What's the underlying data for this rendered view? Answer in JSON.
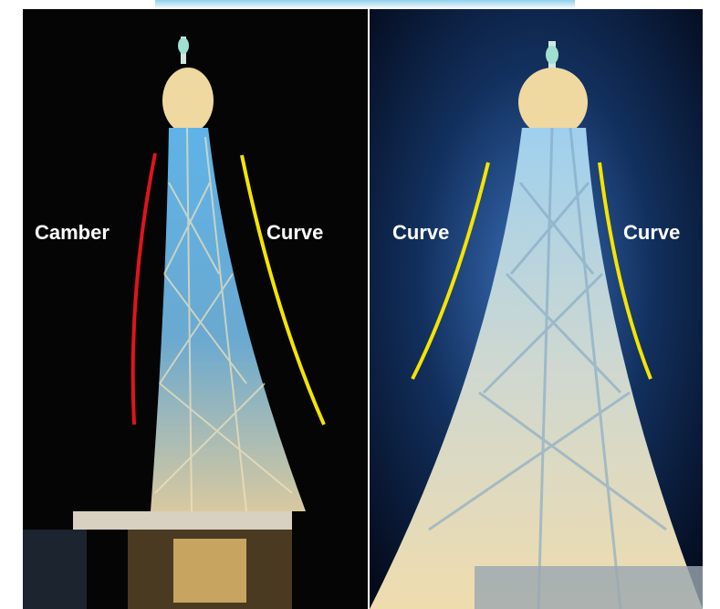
{
  "panels": [
    {
      "labels": [
        "Camber",
        "Curve"
      ]
    },
    {
      "labels": [
        "Curve",
        "Curve"
      ]
    }
  ]
}
